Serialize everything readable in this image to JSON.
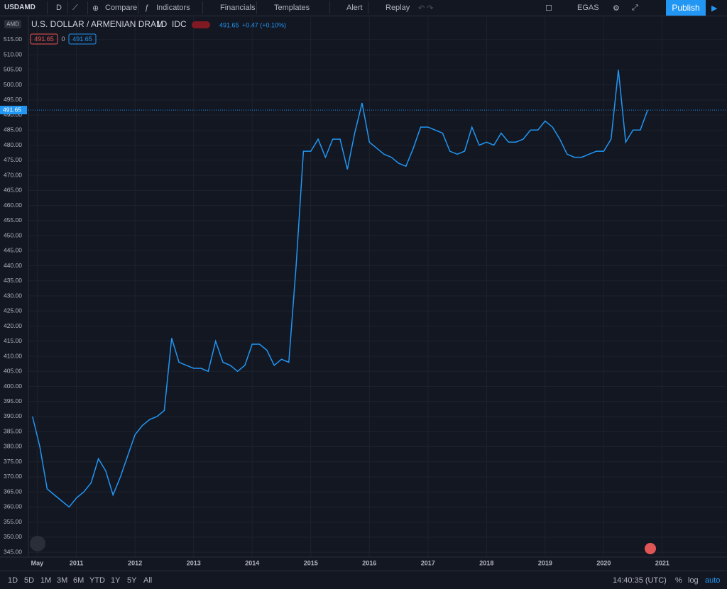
{
  "toolbar": {
    "symbol": "USDAMD",
    "interval": "D",
    "compare": "Compare",
    "indicators": "Indicators",
    "financials": "Financials",
    "templates": "Templates",
    "alert": "Alert",
    "replay": "Replay",
    "layout": "EGAS",
    "publish": "Publish"
  },
  "legend": {
    "currency": "AMD",
    "title": "U.S. DOLLAR / ARMENIAN DRAM",
    "interval": "1D",
    "source": "IDC",
    "last": "491.65",
    "change": "+0.47 (+0.10%)",
    "bid": "491.65",
    "spread": "0",
    "ask": "491.65"
  },
  "chart_data": {
    "type": "line",
    "grid": true,
    "x": [
      2010.25,
      2010.375,
      2010.5,
      2010.625,
      2010.75,
      2010.875,
      2011,
      2011.125,
      2011.25,
      2011.375,
      2011.5,
      2011.625,
      2011.75,
      2011.875,
      2012,
      2012.125,
      2012.25,
      2012.375,
      2012.5,
      2012.625,
      2012.75,
      2012.875,
      2013,
      2013.125,
      2013.25,
      2013.375,
      2013.5,
      2013.625,
      2013.75,
      2013.875,
      2014,
      2014.125,
      2014.25,
      2014.375,
      2014.5,
      2014.625,
      2014.75,
      2014.875,
      2015,
      2015.125,
      2015.25,
      2015.375,
      2015.5,
      2015.625,
      2015.75,
      2015.875,
      2016,
      2016.125,
      2016.25,
      2016.375,
      2016.5,
      2016.625,
      2016.75,
      2016.875,
      2017,
      2017.125,
      2017.25,
      2017.375,
      2017.5,
      2017.625,
      2017.75,
      2017.875,
      2018,
      2018.125,
      2018.25,
      2018.375,
      2018.5,
      2018.625,
      2018.75,
      2018.875,
      2019,
      2019.125,
      2019.25,
      2019.375,
      2019.5,
      2019.625,
      2019.75,
      2019.875,
      2020,
      2020.125,
      2020.25,
      2020.375,
      2020.5,
      2020.625,
      2020.75
    ],
    "series": [
      {
        "color": "#2196f3",
        "values": [
          390,
          380,
          366,
          364,
          362,
          360,
          363,
          365,
          368,
          376,
          372,
          364,
          370,
          377,
          384,
          387,
          389,
          390,
          392,
          416,
          408,
          407,
          406,
          406,
          405,
          415,
          408,
          407,
          405,
          407,
          414,
          414,
          412,
          407,
          409,
          408,
          440,
          478,
          478,
          482,
          476,
          482,
          482,
          472,
          484,
          494,
          481,
          479,
          477,
          476,
          474,
          473,
          479,
          486,
          486,
          485,
          484,
          478,
          477,
          478,
          486,
          480,
          481,
          480,
          484,
          481,
          481,
          482,
          485,
          485,
          488,
          486,
          482,
          477,
          476,
          476,
          477,
          478,
          478,
          482,
          505,
          481,
          485,
          485,
          491.65
        ]
      }
    ],
    "xlim": [
      2010.18,
      2022.08
    ],
    "xticks": [
      {
        "value": 2010.33,
        "label": "May"
      },
      2011,
      2012,
      2013,
      2014,
      2015,
      2016,
      2017,
      2018,
      2019,
      2020,
      2021
    ],
    "ylim": [
      343.4,
      522.5
    ],
    "yticks": [
      {
        "value": 345,
        "label": "345.00"
      },
      {
        "value": 350,
        "label": "350.00"
      },
      {
        "value": 355,
        "label": "355.00"
      },
      {
        "value": 360,
        "label": "360.00"
      },
      {
        "value": 365,
        "label": "365.00"
      },
      {
        "value": 370,
        "label": "370.00"
      },
      {
        "value": 375,
        "label": "375.00"
      },
      {
        "value": 380,
        "label": "380.00"
      },
      {
        "value": 385,
        "label": "385.00"
      },
      {
        "value": 390,
        "label": "390.00"
      },
      {
        "value": 395,
        "label": "395.00"
      },
      {
        "value": 400,
        "label": "400.00"
      },
      {
        "value": 405,
        "label": "405.00"
      },
      {
        "value": 410,
        "label": "410.00"
      },
      {
        "value": 415,
        "label": "415.00"
      },
      {
        "value": 420,
        "label": "420.00"
      },
      {
        "value": 425,
        "label": "425.00"
      },
      {
        "value": 430,
        "label": "430.00"
      },
      {
        "value": 435,
        "label": "435.00"
      },
      {
        "value": 440,
        "label": "440.00"
      },
      {
        "value": 445,
        "label": "445.00"
      },
      {
        "value": 450,
        "label": "450.00"
      },
      {
        "value": 455,
        "label": "455.00"
      },
      {
        "value": 460,
        "label": "460.00"
      },
      {
        "value": 465,
        "label": "465.00"
      },
      {
        "value": 470,
        "label": "470.00"
      },
      {
        "value": 475,
        "label": "475.00"
      },
      {
        "value": 480,
        "label": "480.00"
      },
      {
        "value": 485,
        "label": "485.00"
      },
      {
        "value": 490,
        "label": "490.00"
      },
      {
        "value": 495,
        "label": "495.00"
      },
      {
        "value": 500,
        "label": "500.00"
      },
      {
        "value": 505,
        "label": "505.00"
      },
      {
        "value": 510,
        "label": "510.00"
      },
      {
        "value": 515,
        "label": "515.00"
      }
    ],
    "last_price": 491.65
  },
  "footer": {
    "ranges": [
      "1D",
      "5D",
      "1M",
      "3M",
      "6M",
      "YTD",
      "1Y",
      "5Y",
      "All"
    ],
    "time": "14:40:35 (UTC)",
    "percent": "%",
    "log": "log",
    "auto": "auto"
  }
}
